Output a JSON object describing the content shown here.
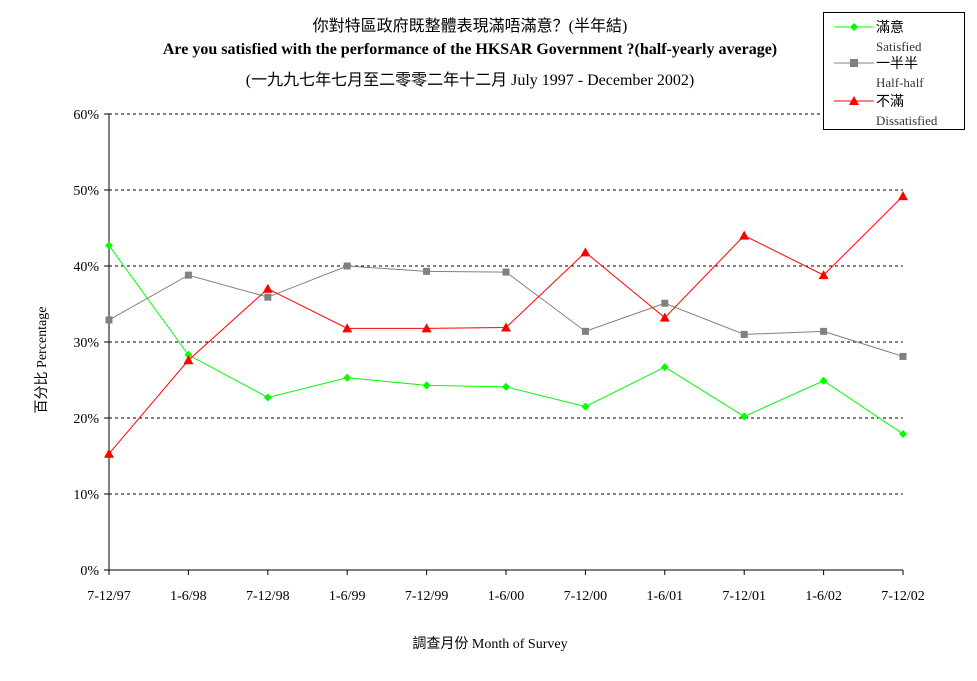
{
  "chart_data": {
    "type": "line",
    "title_zh": "你對特區政府既整體表現滿唔滿意？(半年結)",
    "title_en": "Are you satisfied with the performance of the HKSAR Government ?(half-yearly average)",
    "subtitle": "(一九九七年七月至二零零二年十二月 July 1997 - December 2002)",
    "xlabel": "調查月份 Month of Survey",
    "ylabel": "百分比 Percentage",
    "categories": [
      "7-12/97",
      "1-6/98",
      "7-12/98",
      "1-6/99",
      "7-12/99",
      "1-6/00",
      "7-12/00",
      "1-6/01",
      "7-12/01",
      "1-6/02",
      "7-12/02"
    ],
    "y_ticks": [
      "0%",
      "10%",
      "20%",
      "30%",
      "40%",
      "50%",
      "60%"
    ],
    "ylim": [
      0,
      60
    ],
    "grid": "horizontal dashed",
    "legend_position": "top-right",
    "series": [
      {
        "name_zh": "滿意",
        "name_en": "Satisfied",
        "color": "#00ff00",
        "marker": "diamond",
        "values": [
          42.7,
          28.3,
          22.7,
          25.3,
          24.3,
          24.1,
          21.5,
          26.7,
          20.2,
          24.9,
          17.9
        ]
      },
      {
        "name_zh": "一半半",
        "name_en": "Half-half",
        "color": "#808080",
        "marker": "square",
        "values": [
          32.9,
          38.8,
          35.9,
          40.0,
          39.3,
          39.2,
          31.4,
          35.1,
          31.0,
          31.4,
          28.1
        ]
      },
      {
        "name_zh": "不滿",
        "name_en": "Dissatisfied",
        "color": "#ff0000",
        "marker": "triangle",
        "values": [
          15.3,
          27.6,
          37.0,
          31.8,
          31.8,
          31.9,
          41.8,
          33.2,
          44.0,
          38.8,
          49.2
        ]
      }
    ]
  }
}
